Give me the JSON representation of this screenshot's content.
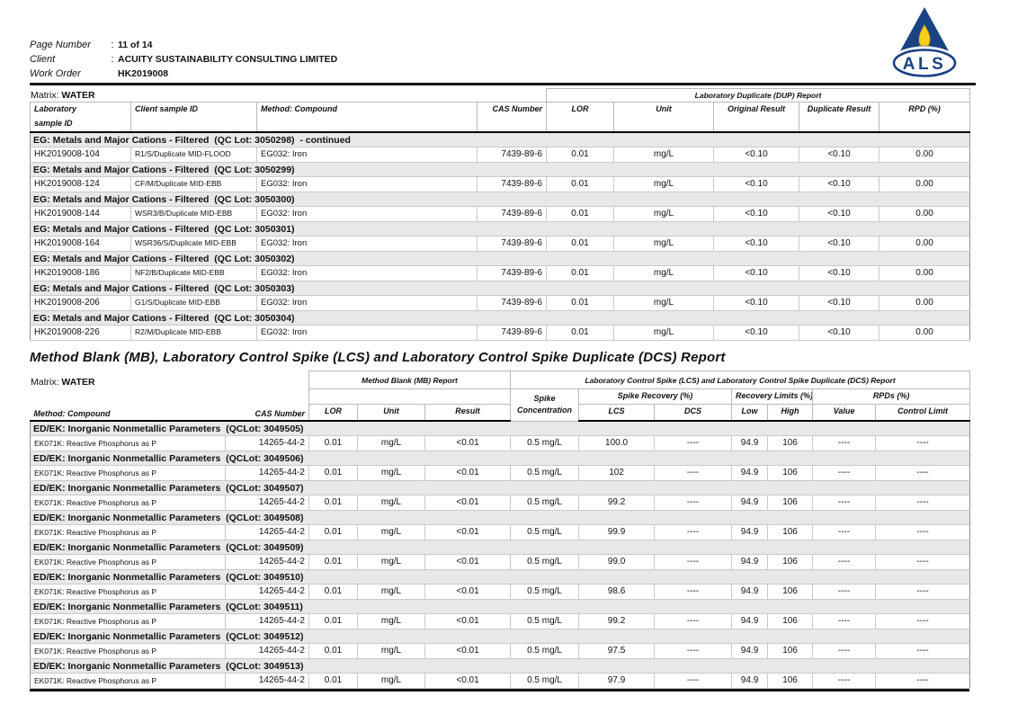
{
  "page_header": {
    "fields": [
      {
        "label": "Page Number",
        "sep": ":",
        "value": "11 of 14"
      },
      {
        "label": "Client",
        "sep": ":",
        "value": "ACUITY SUSTAINABILITY CONSULTING LIMITED"
      },
      {
        "label": "Work Order",
        "sep": "",
        "value": "HK2019008"
      }
    ],
    "logo_text": "ALS",
    "logo_colors": {
      "navy": "#1a4383",
      "flame_yellow": "#f5cf1b",
      "candle_gray": "#9aa0a6"
    }
  },
  "dup_report": {
    "matrix_label": "Matrix:",
    "matrix_value": "WATER",
    "group_header": "Laboratory Duplicate (DUP) Report",
    "columns": {
      "lab_sample_id_line1": "Laboratory",
      "lab_sample_id_line2": "sample ID",
      "client_sample_id": "Client sample ID",
      "method_compound": "Method: Compound",
      "cas_number": "CAS Number",
      "lor": "LOR",
      "unit": "Unit",
      "original_result": "Original Result",
      "duplicate_result": "Duplicate Result",
      "rpd": "RPD (%)"
    },
    "groups": [
      {
        "title": "EG: Metals and Major Cations - Filtered  (QC Lot: 3050298)  - continued",
        "rows": [
          [
            "HK2019008-104",
            "R1/S/Duplicate MID-FLOOD",
            "EG032: Iron",
            "7439-89-6",
            "0.01",
            "mg/L",
            "<0.10",
            "<0.10",
            "0.00"
          ]
        ]
      },
      {
        "title": "EG: Metals and Major Cations - Filtered  (QC Lot: 3050299)",
        "rows": [
          [
            "HK2019008-124",
            "CF/M/Duplicate MID-EBB",
            "EG032: Iron",
            "7439-89-6",
            "0.01",
            "mg/L",
            "<0.10",
            "<0.10",
            "0.00"
          ]
        ]
      },
      {
        "title": "EG: Metals and Major Cations - Filtered  (QC Lot: 3050300)",
        "rows": [
          [
            "HK2019008-144",
            "WSR3/B/Duplicate MID-EBB",
            "EG032: Iron",
            "7439-89-6",
            "0.01",
            "mg/L",
            "<0.10",
            "<0.10",
            "0.00"
          ]
        ]
      },
      {
        "title": "EG: Metals and Major Cations - Filtered  (QC Lot: 3050301)",
        "rows": [
          [
            "HK2019008-164",
            "WSR36/S/Duplicate MID-EBB",
            "EG032: Iron",
            "7439-89-6",
            "0.01",
            "mg/L",
            "<0.10",
            "<0.10",
            "0.00"
          ]
        ]
      },
      {
        "title": "EG: Metals and Major Cations - Filtered  (QC Lot: 3050302)",
        "rows": [
          [
            "HK2019008-186",
            "NF2/B/Duplicate MID-EBB",
            "EG032: Iron",
            "7439-89-6",
            "0.01",
            "mg/L",
            "<0.10",
            "<0.10",
            "0.00"
          ]
        ]
      },
      {
        "title": "EG: Metals and Major Cations - Filtered  (QC Lot: 3050303)",
        "rows": [
          [
            "HK2019008-206",
            "G1/S/Duplicate MID-EBB",
            "EG032: Iron",
            "7439-89-6",
            "0.01",
            "mg/L",
            "<0.10",
            "<0.10",
            "0.00"
          ]
        ]
      },
      {
        "title": "EG: Metals and Major Cations - Filtered  (QC Lot: 3050304)",
        "rows": [
          [
            "HK2019008-226",
            "R2/M/Duplicate MID-EBB",
            "EG032: Iron",
            "7439-89-6",
            "0.01",
            "mg/L",
            "<0.10",
            "<0.10",
            "0.00"
          ]
        ]
      }
    ]
  },
  "mb_lcs_report": {
    "section_title": "Method Blank (MB), Laboratory Control Spike (LCS) and Laboratory Control Spike Duplicate (DCS) Report",
    "matrix_label": "Matrix:",
    "matrix_value": "WATER",
    "mb_group_header": "Method Blank (MB) Report",
    "lcs_group_header": "Laboratory Control Spike (LCS) and Laboratory Control Spike Duplicate (DCS) Report",
    "subheaders": {
      "spike_recovery": "Spike Recovery (%)",
      "recovery_limits": "Recovery Limits (%)",
      "rpds": "RPDs (%)"
    },
    "columns": {
      "method_compound": "Method: Compound",
      "cas_number": "CAS Number",
      "lor": "LOR",
      "unit": "Unit",
      "result": "Result",
      "spike_concentration_line1": "Spike",
      "spike_concentration_line2": "Concentration",
      "lcs": "LCS",
      "dcs": "DCS",
      "low": "Low",
      "high": "High",
      "value": "Value",
      "control_limit": "Control Limit"
    },
    "groups": [
      {
        "title": "ED/EK: Inorganic Nonmetallic Parameters  (QCLot: 3049505)",
        "rows": [
          [
            "EK071K: Reactive Phosphorus as P",
            "14265-44-2",
            "0.01",
            "mg/L",
            "<0.01",
            "0.5 mg/L",
            "100.0",
            "----",
            "94.9",
            "106",
            "----",
            "----"
          ]
        ]
      },
      {
        "title": "ED/EK: Inorganic Nonmetallic Parameters  (QCLot: 3049506)",
        "rows": [
          [
            "EK071K: Reactive Phosphorus as P",
            "14265-44-2",
            "0.01",
            "mg/L",
            "<0.01",
            "0.5 mg/L",
            "102",
            "----",
            "94.9",
            "106",
            "----",
            "----"
          ]
        ]
      },
      {
        "title": "ED/EK: Inorganic Nonmetallic Parameters  (QCLot: 3049507)",
        "rows": [
          [
            "EK071K: Reactive Phosphorus as P",
            "14265-44-2",
            "0.01",
            "mg/L",
            "<0.01",
            "0.5 mg/L",
            "99.2",
            "----",
            "94.9",
            "106",
            "----",
            "----"
          ]
        ]
      },
      {
        "title": "ED/EK: Inorganic Nonmetallic Parameters  (QCLot: 3049508)",
        "rows": [
          [
            "EK071K: Reactive Phosphorus as P",
            "14265-44-2",
            "0.01",
            "mg/L",
            "<0.01",
            "0.5 mg/L",
            "99.9",
            "----",
            "94.9",
            "106",
            "----",
            "----"
          ]
        ]
      },
      {
        "title": "ED/EK: Inorganic Nonmetallic Parameters  (QCLot: 3049509)",
        "rows": [
          [
            "EK071K: Reactive Phosphorus as P",
            "14265-44-2",
            "0.01",
            "mg/L",
            "<0.01",
            "0.5 mg/L",
            "99.0",
            "----",
            "94.9",
            "106",
            "----",
            "----"
          ]
        ]
      },
      {
        "title": "ED/EK: Inorganic Nonmetallic Parameters  (QCLot: 3049510)",
        "rows": [
          [
            "EK071K: Reactive Phosphorus as P",
            "14265-44-2",
            "0.01",
            "mg/L",
            "<0.01",
            "0.5 mg/L",
            "98.6",
            "----",
            "94.9",
            "106",
            "----",
            "----"
          ]
        ]
      },
      {
        "title": "ED/EK: Inorganic Nonmetallic Parameters  (QCLot: 3049511)",
        "rows": [
          [
            "EK071K: Reactive Phosphorus as P",
            "14265-44-2",
            "0.01",
            "mg/L",
            "<0.01",
            "0.5 mg/L",
            "99.2",
            "----",
            "94.9",
            "106",
            "----",
            "----"
          ]
        ]
      },
      {
        "title": "ED/EK: Inorganic Nonmetallic Parameters  (QCLot: 3049512)",
        "rows": [
          [
            "EK071K: Reactive Phosphorus as P",
            "14265-44-2",
            "0.01",
            "mg/L",
            "<0.01",
            "0.5 mg/L",
            "97.5",
            "----",
            "94.9",
            "106",
            "----",
            "----"
          ]
        ]
      },
      {
        "title": "ED/EK: Inorganic Nonmetallic Parameters  (QCLot: 3049513)",
        "rows": [
          [
            "EK071K: Reactive Phosphorus as P",
            "14265-44-2",
            "0.01",
            "mg/L",
            "<0.01",
            "0.5 mg/L",
            "97.9",
            "----",
            "94.9",
            "106",
            "----",
            "----"
          ]
        ]
      }
    ]
  }
}
